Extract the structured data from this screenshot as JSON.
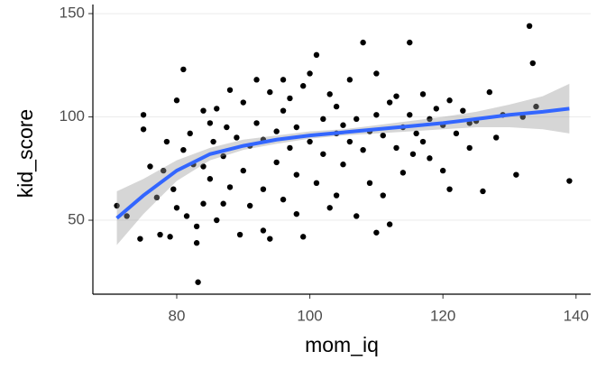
{
  "chart_data": {
    "type": "scatter",
    "x_label": "mom_iq",
    "y_label": "kid_score",
    "x": [
      71,
      72.5,
      74.5,
      75,
      75,
      76,
      77,
      77.5,
      78,
      78.5,
      79,
      79.5,
      80,
      80,
      81,
      81,
      81.5,
      82,
      82.5,
      83,
      83,
      83.2,
      84,
      84,
      85,
      85,
      85.5,
      86,
      86,
      87,
      87.5,
      88,
      88,
      89,
      89.5,
      90,
      90,
      91,
      91,
      92,
      92,
      93,
      93,
      94,
      94,
      95,
      95,
      96,
      96,
      97,
      97,
      98,
      98,
      99,
      99,
      100,
      100,
      101,
      101,
      102,
      102,
      103,
      103,
      104,
      104,
      105,
      105,
      106,
      106,
      107,
      107,
      108,
      108,
      109,
      109,
      110,
      110,
      111,
      111,
      112,
      112,
      113,
      113,
      114,
      114,
      115,
      115,
      115.5,
      116,
      117,
      117,
      118,
      119,
      120,
      120,
      121,
      121,
      122,
      123,
      124,
      125,
      126,
      127,
      128,
      129,
      131,
      132,
      133,
      133.5,
      134,
      139,
      87,
      93,
      98,
      104,
      110,
      118,
      124,
      84,
      96
    ],
    "values": [
      57,
      52,
      41,
      101,
      94,
      76,
      61,
      43,
      74,
      88,
      42,
      65,
      56,
      108,
      123,
      84,
      52,
      92,
      77,
      47,
      39,
      20,
      103,
      58,
      97,
      70,
      88,
      104,
      50,
      81,
      95,
      66,
      113,
      90,
      43,
      107,
      74,
      86,
      57,
      118,
      97,
      65,
      89,
      112,
      41,
      93,
      78,
      103,
      60,
      85,
      109,
      72,
      95,
      42,
      115,
      88,
      121,
      130,
      68,
      99,
      82,
      111,
      56,
      92,
      105,
      77,
      96,
      118,
      88,
      52,
      99,
      136,
      84,
      93,
      68,
      121,
      101,
      91,
      62,
      107,
      48,
      85,
      110,
      95,
      73,
      136,
      101,
      82,
      92,
      111,
      88,
      99,
      104,
      74,
      96,
      65,
      108,
      92,
      103,
      85,
      98,
      64,
      112,
      90,
      101,
      72,
      100,
      144,
      126,
      105,
      69,
      58,
      45,
      53,
      62,
      44,
      80,
      97,
      76,
      118
    ],
    "color": "#000000",
    "smooth": {
      "color": "#3366ff",
      "band_color": "#999999",
      "x": [
        71,
        75,
        80,
        85,
        90,
        95,
        100,
        105,
        110,
        115,
        120,
        125,
        130,
        135,
        139
      ],
      "values": [
        51,
        62,
        74,
        82,
        86,
        89,
        91,
        92.5,
        94,
        95.5,
        97,
        99,
        101,
        102.5,
        104
      ],
      "lower": [
        38,
        53,
        69,
        79,
        84,
        87,
        89.5,
        91,
        92,
        93,
        94,
        95,
        95,
        94,
        92
      ],
      "upper": [
        64,
        70,
        79,
        85,
        89,
        91,
        93,
        94,
        96,
        98,
        100,
        102.5,
        106,
        110,
        116
      ]
    },
    "xlim": [
      67.4,
      142.2
    ],
    "ylim": [
      14.2,
      154.4
    ],
    "xticks": [
      80,
      100,
      120,
      140
    ],
    "yticks": [
      50,
      100,
      150
    ],
    "grid": true
  }
}
